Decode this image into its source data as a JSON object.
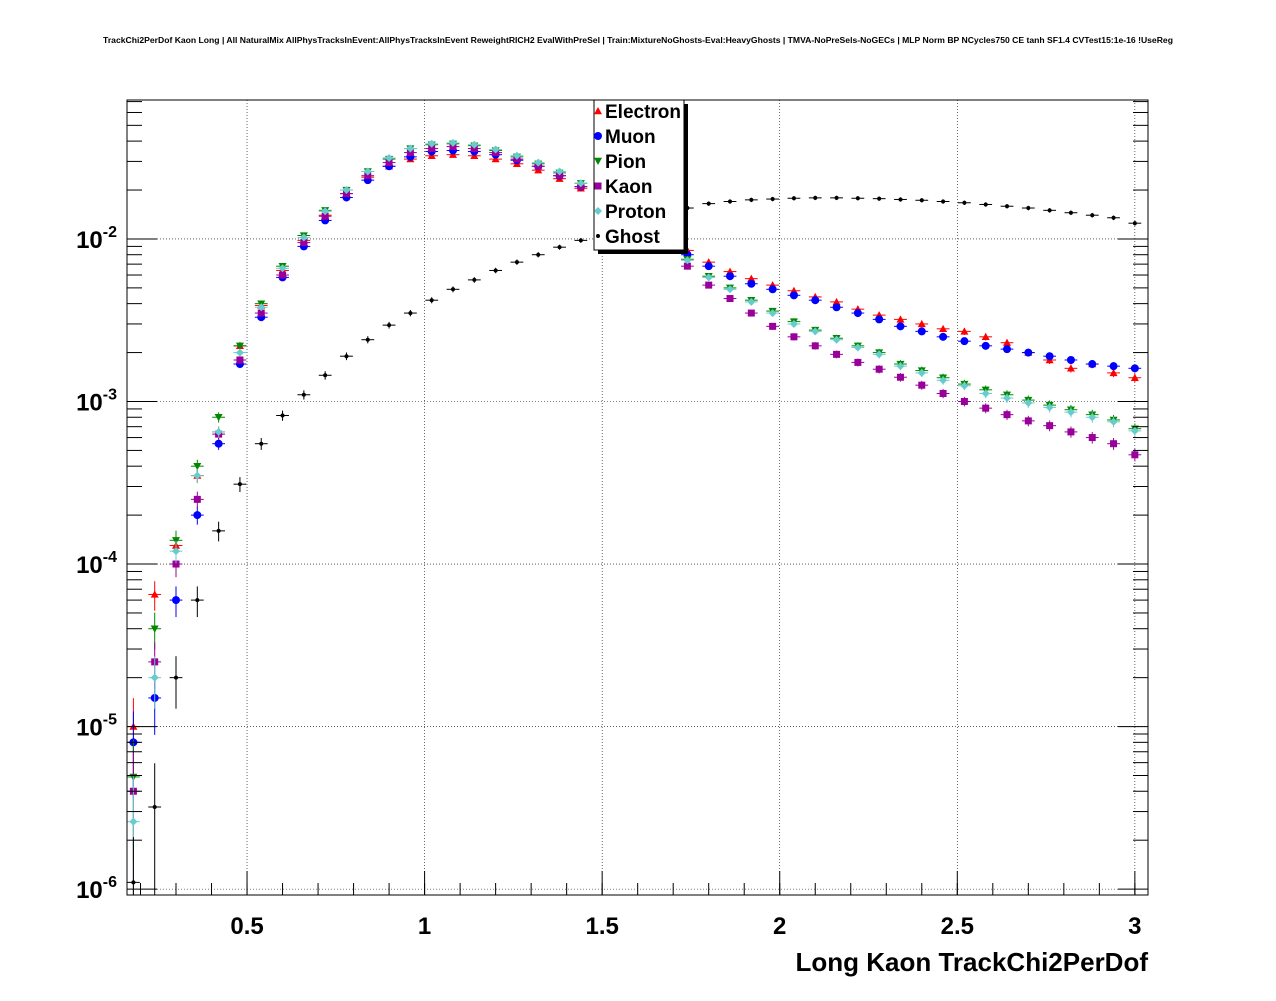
{
  "chart_data": {
    "type": "scatter",
    "title": "TrackChi2PerDof Kaon Long | All NaturalMix AllPhysTracksInEvent:AllPhysTracksInEvent ReweightRICH2 EvalWithPreSel | Train:MixtureNoGhosts-Eval:HeavyGhosts | TMVA-NoPreSels-NoGECs | MLP Norm BP NCycles750 CE tanh SF1.4 CVTest15:1e-16 !UseReg",
    "xlabel": "Long Kaon TrackChi2PerDof",
    "ylabel": "",
    "xlim": [
      0.162,
      3.037
    ],
    "ylim": [
      9.2e-07,
      0.0716
    ],
    "yscale": "log",
    "grid": true,
    "legend_position": "top-center",
    "x_ticks": [
      {
        "value": 0.5,
        "label": "0.5"
      },
      {
        "value": 1,
        "label": "1"
      },
      {
        "value": 1.5,
        "label": "1.5"
      },
      {
        "value": 2,
        "label": "2"
      },
      {
        "value": 2.5,
        "label": "2.5"
      },
      {
        "value": 3,
        "label": "3"
      }
    ],
    "y_ticks": [
      {
        "value": 0.01,
        "base": "10",
        "exp": "-2"
      },
      {
        "value": 0.001,
        "base": "10",
        "exp": "-3"
      },
      {
        "value": 0.0001,
        "base": "10",
        "exp": "-4"
      },
      {
        "value": 1e-05,
        "base": "10",
        "exp": "-5"
      },
      {
        "value": 1e-06,
        "base": "10",
        "exp": "-6"
      }
    ],
    "x": [
      0.18,
      0.24,
      0.3,
      0.36,
      0.42,
      0.48,
      0.54,
      0.6,
      0.66,
      0.72,
      0.78,
      0.84,
      0.9,
      0.96,
      1.02,
      1.08,
      1.14,
      1.2,
      1.26,
      1.32,
      1.38,
      1.44,
      1.5,
      1.56,
      1.62,
      1.68,
      1.74,
      1.8,
      1.86,
      1.92,
      1.98,
      2.04,
      2.1,
      2.16,
      2.22,
      2.28,
      2.34,
      2.4,
      2.46,
      2.52,
      2.58,
      2.64,
      2.7,
      2.76,
      2.82,
      2.88,
      2.94,
      3.0
    ],
    "series": [
      {
        "name": "Electron",
        "color": "#ff0000",
        "marker": "triangle-up",
        "values": [
          1e-05,
          6.5e-05,
          0.00013,
          0.00035,
          0.00065,
          0.0022,
          0.0039,
          0.0064,
          0.0098,
          0.014,
          0.019,
          0.024,
          0.028,
          0.031,
          0.0325,
          0.033,
          0.0325,
          0.031,
          0.029,
          0.0265,
          0.0235,
          0.0205,
          0.0175,
          0.0145,
          0.012,
          0.01,
          0.0085,
          0.0072,
          0.0063,
          0.0057,
          0.0052,
          0.0048,
          0.0044,
          0.0041,
          0.0037,
          0.0034,
          0.0032,
          0.003,
          0.0028,
          0.0027,
          0.0025,
          0.0023,
          0.002,
          0.0018,
          0.0016,
          0.0017,
          0.0015,
          0.0014
        ]
      },
      {
        "name": "Muon",
        "color": "#0000ff",
        "marker": "circle",
        "values": [
          8e-06,
          1.5e-05,
          6e-05,
          0.0002,
          0.00055,
          0.0017,
          0.0033,
          0.0058,
          0.009,
          0.013,
          0.018,
          0.023,
          0.028,
          0.032,
          0.0345,
          0.035,
          0.0345,
          0.033,
          0.0305,
          0.028,
          0.0245,
          0.021,
          0.0178,
          0.0147,
          0.012,
          0.0098,
          0.008,
          0.0068,
          0.0059,
          0.0053,
          0.0049,
          0.0045,
          0.0042,
          0.0038,
          0.0035,
          0.0032,
          0.0029,
          0.0027,
          0.0025,
          0.00235,
          0.0022,
          0.0021,
          0.002,
          0.0019,
          0.0018,
          0.0017,
          0.00165,
          0.0016
        ]
      },
      {
        "name": "Pion",
        "color": "#008800",
        "marker": "triangle-down",
        "values": [
          4.9e-06,
          4e-05,
          0.00014,
          0.0004,
          0.0008,
          0.0022,
          0.004,
          0.0068,
          0.0105,
          0.015,
          0.02,
          0.026,
          0.031,
          0.036,
          0.038,
          0.0385,
          0.0375,
          0.035,
          0.032,
          0.029,
          0.0255,
          0.022,
          0.0185,
          0.015,
          0.012,
          0.0095,
          0.0075,
          0.0059,
          0.005,
          0.0042,
          0.0036,
          0.0031,
          0.00275,
          0.00245,
          0.0022,
          0.002,
          0.0017,
          0.00155,
          0.0014,
          0.00128,
          0.00118,
          0.0011,
          0.00102,
          0.00095,
          0.00089,
          0.00083,
          0.00077,
          0.00068
        ]
      },
      {
        "name": "Kaon",
        "color": "#990099",
        "marker": "square",
        "values": [
          4e-06,
          2.5e-05,
          0.0001,
          0.00025,
          0.00063,
          0.0018,
          0.0035,
          0.006,
          0.0095,
          0.0138,
          0.019,
          0.0245,
          0.0295,
          0.034,
          0.036,
          0.037,
          0.036,
          0.034,
          0.031,
          0.028,
          0.0245,
          0.021,
          0.0174,
          0.014,
          0.0112,
          0.0087,
          0.0068,
          0.0052,
          0.0043,
          0.0035,
          0.0029,
          0.0025,
          0.0022,
          0.00195,
          0.00174,
          0.00158,
          0.00141,
          0.00126,
          0.00112,
          0.001,
          0.00091,
          0.00083,
          0.00076,
          0.00071,
          0.00065,
          0.0006,
          0.00055,
          0.00047
        ]
      },
      {
        "name": "Proton",
        "color": "#66cccc",
        "marker": "diamond",
        "values": [
          2.6e-06,
          2e-05,
          0.00012,
          0.00035,
          0.00065,
          0.002,
          0.0038,
          0.0066,
          0.0102,
          0.0148,
          0.02,
          0.026,
          0.0315,
          0.036,
          0.0385,
          0.039,
          0.038,
          0.0355,
          0.0325,
          0.0295,
          0.026,
          0.022,
          0.0185,
          0.015,
          0.012,
          0.0094,
          0.0074,
          0.0058,
          0.0049,
          0.0041,
          0.0035,
          0.003,
          0.0027,
          0.0024,
          0.00215,
          0.00195,
          0.00165,
          0.0015,
          0.00135,
          0.00125,
          0.00112,
          0.00105,
          0.00098,
          0.00092,
          0.00086,
          0.0008,
          0.00075,
          0.00066
        ]
      },
      {
        "name": "Ghost",
        "color": "#000000",
        "marker": "dot",
        "values": [
          1.1e-06,
          3.2e-06,
          2e-05,
          6e-05,
          0.00016,
          0.00031,
          0.00055,
          0.00082,
          0.0011,
          0.00145,
          0.0019,
          0.0024,
          0.00295,
          0.0035,
          0.0042,
          0.0049,
          0.0056,
          0.0064,
          0.0072,
          0.008,
          0.0089,
          0.0098,
          0.0107,
          0.0117,
          0.013,
          0.0142,
          0.0155,
          0.0165,
          0.017,
          0.0174,
          0.0176,
          0.0178,
          0.0179,
          0.0179,
          0.0178,
          0.0177,
          0.0175,
          0.0173,
          0.017,
          0.0167,
          0.0163,
          0.0159,
          0.0155,
          0.015,
          0.0145,
          0.014,
          0.0135,
          0.0125
        ]
      }
    ]
  }
}
